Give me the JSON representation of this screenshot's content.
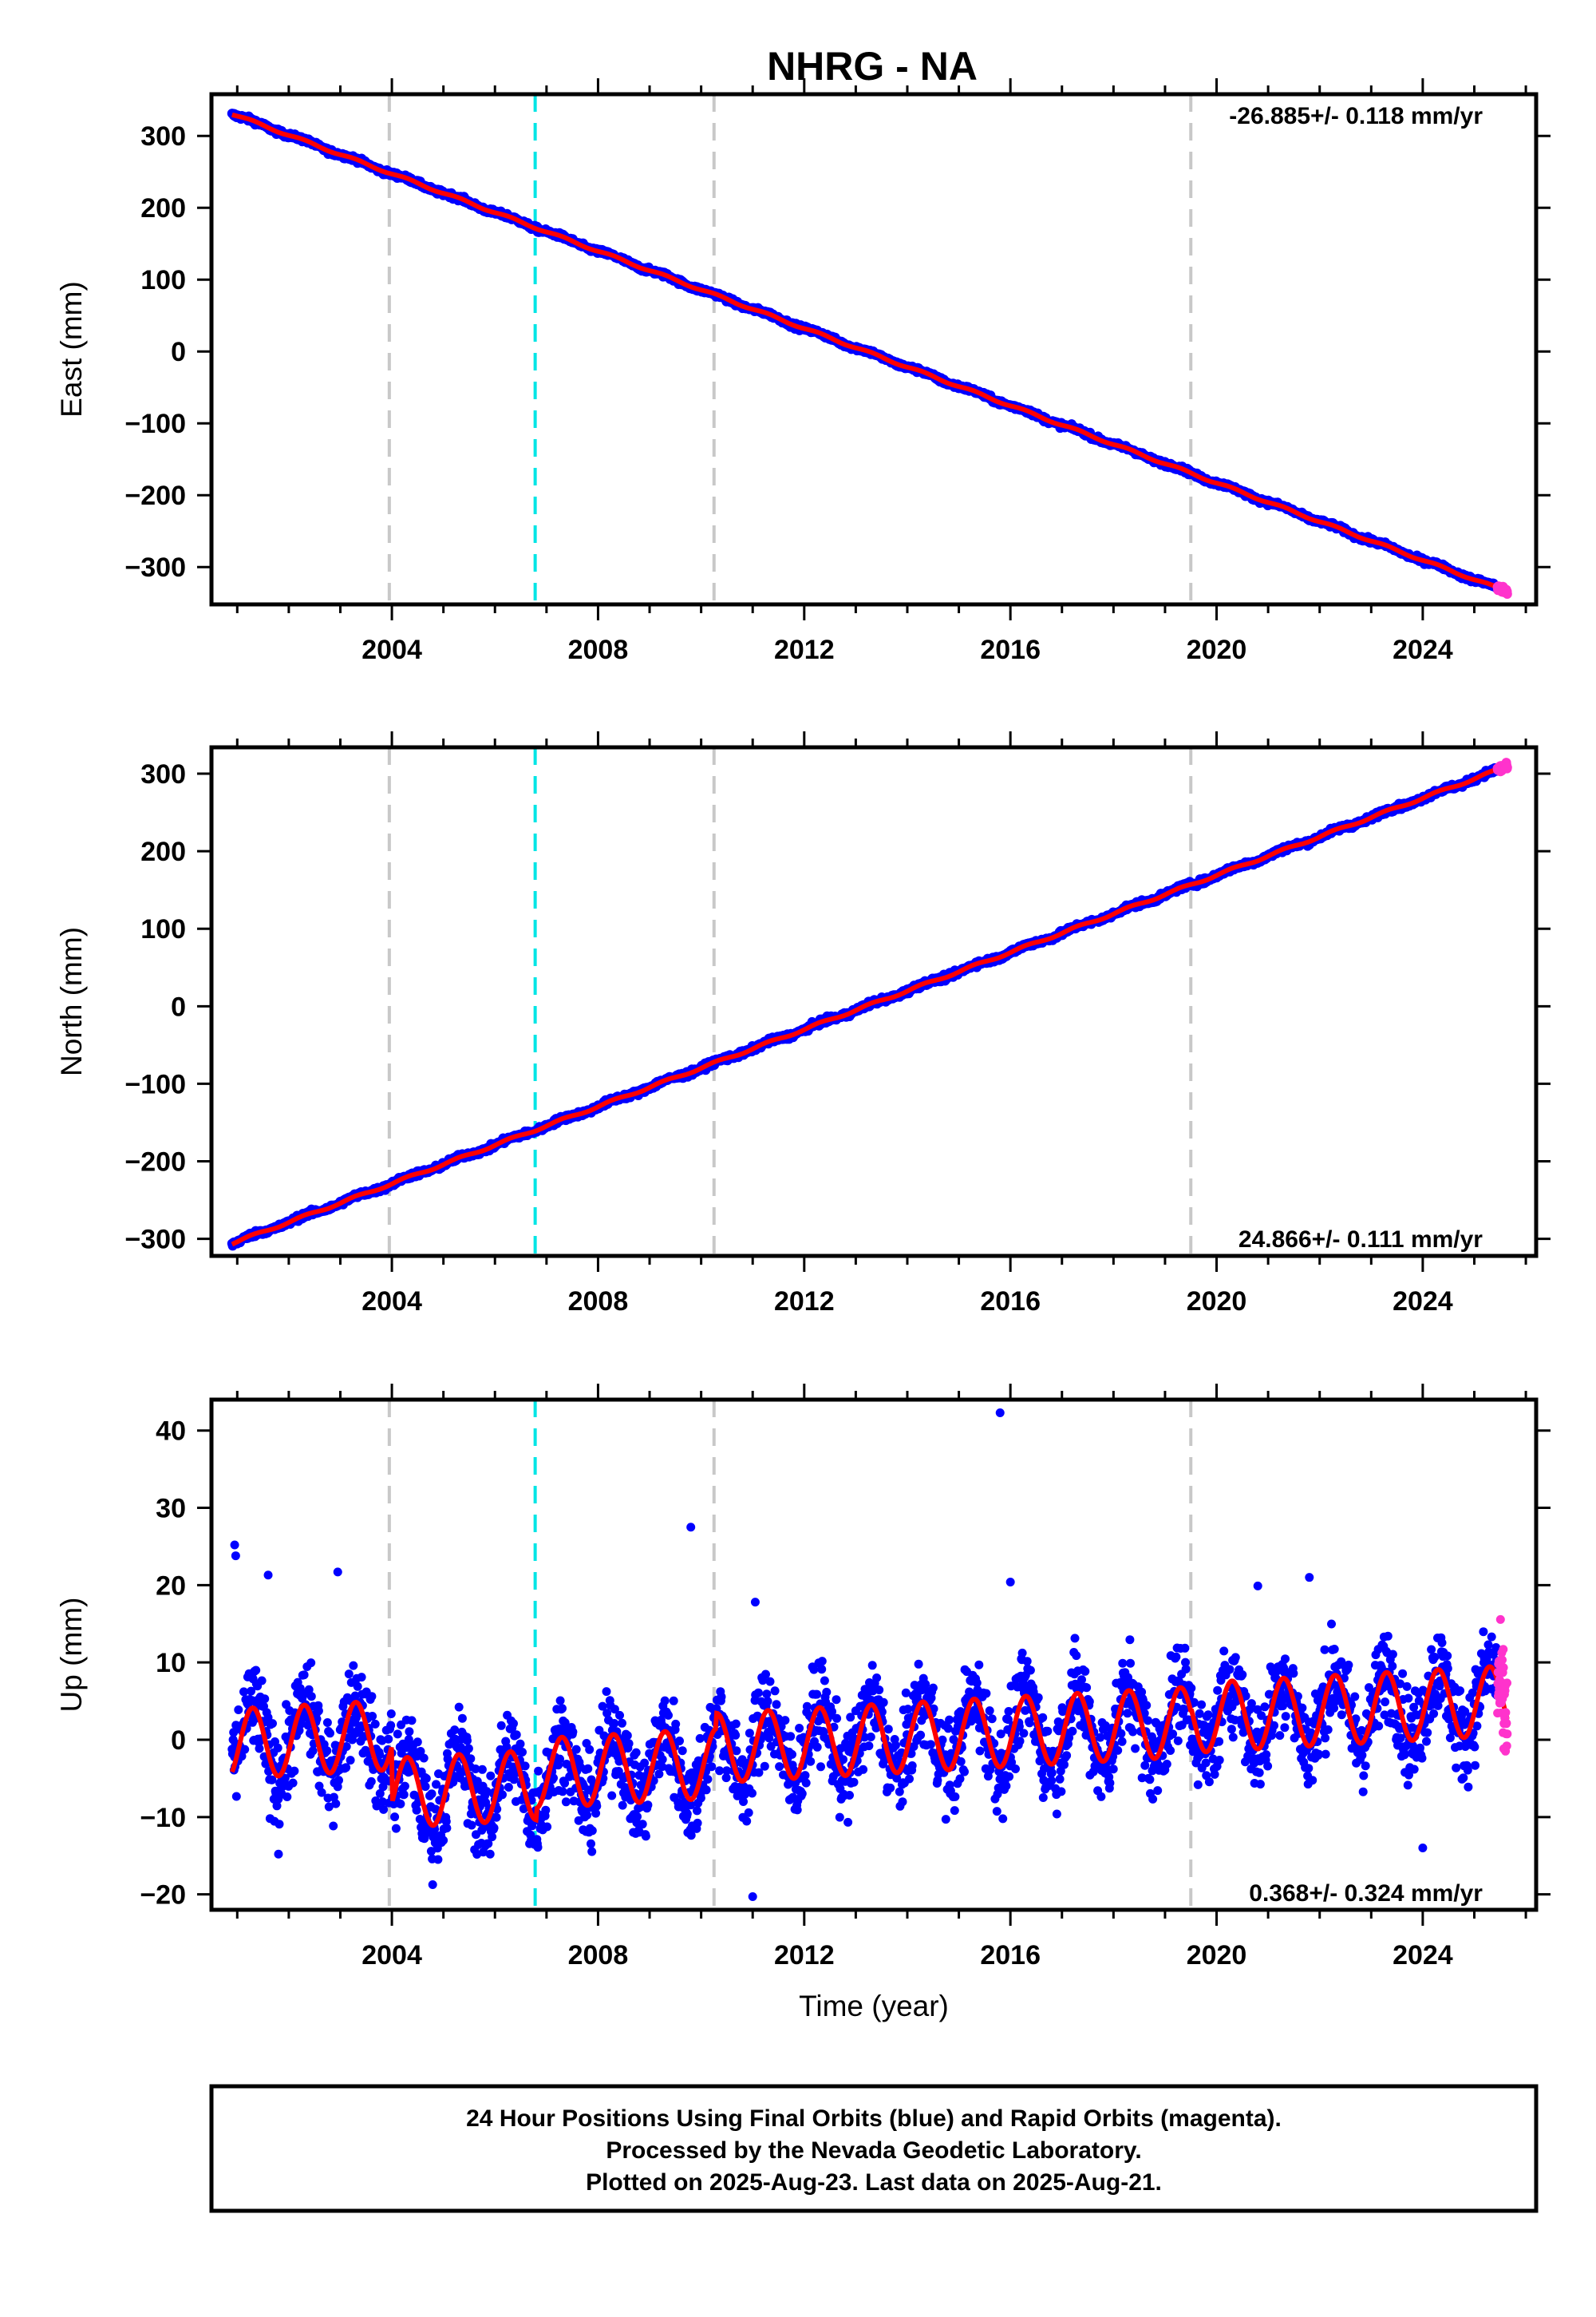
{
  "title": "NHRG - NA",
  "colors": {
    "final_orbits": "#0000ff",
    "rapid_orbits": "#ff33cc",
    "model_fit": "#ff0000",
    "event_line": "#c8c8c8",
    "equipment_change_line": "#00e5e5"
  },
  "chart_data": [
    {
      "type": "scatter",
      "panel": "east",
      "ylabel": "East (mm)",
      "xlabel": "",
      "xlim": [
        2000.5,
        2026.2
      ],
      "ylim": [
        -352,
        358
      ],
      "x_ticks": [
        2004,
        2008,
        2012,
        2016,
        2020,
        2024
      ],
      "x_tick_labels": [
        "2004",
        "2008",
        "2012",
        "2016",
        "2020",
        "2024"
      ],
      "y_ticks": [
        300,
        200,
        100,
        0,
        -100,
        -200,
        -300
      ],
      "y_tick_labels": [
        "300",
        "200",
        "100",
        "0",
        "−100",
        "−200",
        "−300"
      ],
      "rate_annotation": "-26.885+/- 0.118 mm/yr",
      "rate_position": "top-right",
      "trend": {
        "t0": 2013.2,
        "offset": 0.0,
        "rate": -26.885,
        "seasonal_amp": 1.5
      },
      "data_range": {
        "start": 2000.9,
        "end": 2025.64
      },
      "rapid_range": {
        "start": 2025.45,
        "end": 2025.64
      }
    },
    {
      "type": "scatter",
      "panel": "north",
      "ylabel": "North (mm)",
      "xlabel": "",
      "xlim": [
        2000.5,
        2026.2
      ],
      "ylim": [
        -322,
        334
      ],
      "x_ticks": [
        2004,
        2008,
        2012,
        2016,
        2020,
        2024
      ],
      "x_tick_labels": [
        "2004",
        "2008",
        "2012",
        "2016",
        "2020",
        "2024"
      ],
      "y_ticks": [
        300,
        200,
        100,
        0,
        -100,
        -200,
        -300
      ],
      "y_tick_labels": [
        "300",
        "200",
        "100",
        "0",
        "−100",
        "−200",
        "−300"
      ],
      "rate_annotation": "24.866+/- 0.111 mm/yr",
      "rate_position": "bottom-right",
      "trend": {
        "t0": 2013.2,
        "offset": 0.0,
        "rate": 24.866,
        "seasonal_amp": 1.5
      },
      "data_range": {
        "start": 2000.9,
        "end": 2025.64
      },
      "rapid_range": {
        "start": 2025.45,
        "end": 2025.64
      }
    },
    {
      "type": "scatter",
      "panel": "up",
      "ylabel": "Up (mm)",
      "xlabel": "Time (year)",
      "xlim": [
        2000.5,
        2026.2
      ],
      "ylim": [
        -22,
        44
      ],
      "x_ticks": [
        2004,
        2008,
        2012,
        2016,
        2020,
        2024
      ],
      "x_tick_labels": [
        "2004",
        "2008",
        "2012",
        "2016",
        "2020",
        "2024"
      ],
      "y_ticks": [
        40,
        30,
        20,
        10,
        0,
        -10,
        -20
      ],
      "y_tick_labels": [
        "40",
        "30",
        "20",
        "10",
        "0",
        "−10",
        "−20"
      ],
      "rate_annotation": "0.368+/- 0.324 mm/yr",
      "rate_position": "bottom-right",
      "trend": {
        "t0": 2013.2,
        "offset": 0.0,
        "rate": 0.368,
        "seasonal_amp": 4.5
      },
      "data_range": {
        "start": 2000.9,
        "end": 2025.64
      },
      "rapid_range": {
        "start": 2025.45,
        "end": 2025.64
      },
      "steps": [
        {
          "t": 2004.0,
          "offsets": [
            4.0,
            -3.5
          ]
        },
        {
          "t": 2006.8,
          "offsets": [
            -3.5,
            -2.0
          ]
        },
        {
          "t": 2010.3,
          "offsets": [
            -2.0,
            0.0
          ]
        },
        {
          "t": 2019.5,
          "offsets": [
            0.0,
            0.5
          ]
        }
      ],
      "outliers": [
        {
          "x": 2000.95,
          "y": 25.2
        },
        {
          "x": 2000.97,
          "y": 23.8
        },
        {
          "x": 2001.6,
          "y": 21.3
        },
        {
          "x": 2002.95,
          "y": 21.7
        },
        {
          "x": 2009.8,
          "y": 27.5
        },
        {
          "x": 2015.8,
          "y": 42.3
        },
        {
          "x": 2016.0,
          "y": 20.4
        },
        {
          "x": 2020.8,
          "y": 19.9
        },
        {
          "x": 2021.8,
          "y": 21.0
        },
        {
          "x": 2011.05,
          "y": 17.8
        },
        {
          "x": 2011.0,
          "y": -20.3
        },
        {
          "x": 2001.8,
          "y": -14.8
        },
        {
          "x": 2024.0,
          "y": -14.0
        }
      ]
    }
  ],
  "event_lines": {
    "maintenance_years": [
      2003.95,
      2010.25,
      2019.5
    ],
    "equipment_years": [
      2006.78
    ]
  },
  "footer": {
    "line1": "24 Hour Positions Using Final Orbits (blue) and Rapid Orbits (magenta).",
    "line2": "Processed by the Nevada Geodetic Laboratory.",
    "line3": "Plotted on 2025-Aug-23. Last data on 2025-Aug-21."
  }
}
